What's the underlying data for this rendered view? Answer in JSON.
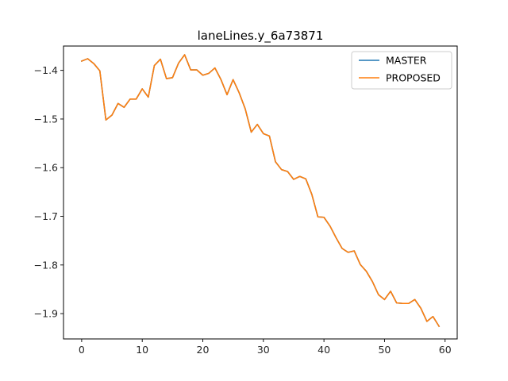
{
  "chart_data": {
    "type": "line",
    "title": "laneLines.y_6a73871",
    "xlabel": "",
    "ylabel": "",
    "xlim": [
      -3,
      62
    ],
    "ylim": [
      -1.952,
      -1.35
    ],
    "grid": false,
    "legend_position": "top-right",
    "x_ticks": [
      0,
      10,
      20,
      30,
      40,
      50,
      60
    ],
    "y_ticks": [
      -1.4,
      -1.5,
      -1.6,
      -1.7,
      -1.8,
      -1.9
    ],
    "x_tick_labels": [
      "0",
      "10",
      "20",
      "30",
      "40",
      "50",
      "60"
    ],
    "y_tick_labels": [
      "−1.4",
      "−1.5",
      "−1.6",
      "−1.7",
      "−1.8",
      "−1.9"
    ],
    "x": [
      0,
      1,
      2,
      3,
      4,
      5,
      6,
      7,
      8,
      9,
      10,
      11,
      12,
      13,
      14,
      15,
      16,
      17,
      18,
      19,
      20,
      21,
      22,
      23,
      24,
      25,
      26,
      27,
      28,
      29,
      30,
      31,
      32,
      33,
      34,
      35,
      36,
      37,
      38,
      39,
      40,
      41,
      42,
      43,
      44,
      45,
      46,
      47,
      48,
      49,
      50,
      51,
      52,
      53,
      54,
      55,
      56,
      57,
      58,
      59
    ],
    "series": [
      {
        "name": "MASTER",
        "color": "#1f77b4",
        "values": [
          -1.381,
          -1.376,
          -1.386,
          -1.401,
          -1.502,
          -1.492,
          -1.468,
          -1.476,
          -1.459,
          -1.459,
          -1.438,
          -1.455,
          -1.39,
          -1.377,
          -1.417,
          -1.415,
          -1.385,
          -1.368,
          -1.399,
          -1.399,
          -1.41,
          -1.406,
          -1.395,
          -1.419,
          -1.45,
          -1.419,
          -1.446,
          -1.479,
          -1.527,
          -1.511,
          -1.53,
          -1.535,
          -1.588,
          -1.604,
          -1.608,
          -1.624,
          -1.618,
          -1.623,
          -1.655,
          -1.701,
          -1.702,
          -1.72,
          -1.744,
          -1.766,
          -1.774,
          -1.771,
          -1.799,
          -1.813,
          -1.834,
          -1.861,
          -1.871,
          -1.854,
          -1.878,
          -1.879,
          -1.879,
          -1.871,
          -1.889,
          -1.916,
          -1.906,
          -1.926
        ]
      },
      {
        "name": "PROPOSED",
        "color": "#ff7f0e",
        "values": [
          -1.381,
          -1.376,
          -1.386,
          -1.401,
          -1.502,
          -1.492,
          -1.468,
          -1.476,
          -1.459,
          -1.459,
          -1.438,
          -1.455,
          -1.39,
          -1.377,
          -1.417,
          -1.415,
          -1.385,
          -1.368,
          -1.399,
          -1.399,
          -1.41,
          -1.406,
          -1.395,
          -1.419,
          -1.45,
          -1.419,
          -1.446,
          -1.479,
          -1.527,
          -1.511,
          -1.53,
          -1.535,
          -1.588,
          -1.604,
          -1.608,
          -1.624,
          -1.618,
          -1.623,
          -1.655,
          -1.701,
          -1.702,
          -1.72,
          -1.744,
          -1.766,
          -1.774,
          -1.771,
          -1.799,
          -1.813,
          -1.834,
          -1.861,
          -1.871,
          -1.854,
          -1.878,
          -1.879,
          -1.879,
          -1.871,
          -1.889,
          -1.916,
          -1.906,
          -1.926
        ]
      }
    ]
  }
}
